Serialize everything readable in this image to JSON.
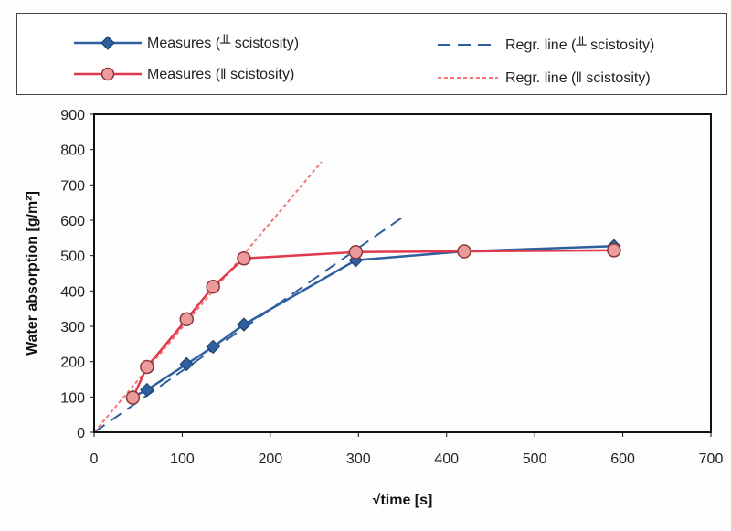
{
  "chart_data": {
    "type": "line",
    "xlabel": "√time [s]",
    "ylabel": "Water absorption [g/m²]",
    "xlim": [
      0,
      700
    ],
    "ylim": [
      0,
      900
    ],
    "xticks": [
      0,
      100,
      200,
      300,
      400,
      500,
      600,
      700
    ],
    "yticks": [
      0,
      100,
      200,
      300,
      400,
      500,
      600,
      700,
      800,
      900
    ],
    "legend_position": "top",
    "series": [
      {
        "name": "Measures (╨ scistosity)",
        "kind": "measures",
        "color": "#2e5f9e",
        "marker": "diamond",
        "x": [
          44,
          60,
          105,
          135,
          170,
          297,
          420,
          590
        ],
        "y": [
          100,
          120,
          193,
          242,
          305,
          487,
          512,
          527
        ]
      },
      {
        "name": "Measures (‖ scistosity)",
        "kind": "measures",
        "color": "#e0384f",
        "marker": "circle",
        "x": [
          44,
          60,
          105,
          135,
          170,
          297,
          420,
          590
        ],
        "y": [
          98,
          185,
          320,
          412,
          492,
          510,
          512,
          515
        ]
      },
      {
        "name": "Regr. line (╨ scistosity)",
        "kind": "regression",
        "color": "#2e5f9e",
        "dash": "long",
        "x": [
          0,
          352
        ],
        "y": [
          0,
          612
        ]
      },
      {
        "name": "Regr. line (‖ scistosity)",
        "kind": "regression",
        "color": "#f07878",
        "dash": "short",
        "x": [
          0,
          258
        ],
        "y": [
          0,
          765
        ]
      }
    ]
  }
}
